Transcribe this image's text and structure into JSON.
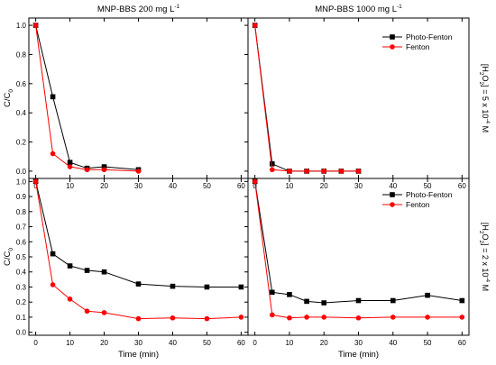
{
  "chart_data": [
    {
      "type": "line",
      "column_title": "MNP-BBS  200 mg L",
      "column_title_sup": "-1",
      "x_ticks": [
        0,
        10,
        20,
        30,
        40,
        50,
        60
      ],
      "y_ticks": [
        "0.0",
        "0.2",
        "0.4",
        "0.6",
        "0.8",
        "1.0"
      ],
      "ylabel": "C/C",
      "ylabel_sub": "0",
      "xlim": [
        -2,
        62
      ],
      "ylim": [
        -0.05,
        1.05
      ],
      "grid": false,
      "legend_position": "",
      "series": [
        {
          "name": "Photo-Fenton",
          "color": "#000000",
          "marker": "square",
          "x": [
            0,
            5,
            10,
            15,
            20,
            30
          ],
          "y": [
            1.0,
            0.51,
            0.06,
            0.02,
            0.03,
            0.01
          ]
        },
        {
          "name": "Fenton",
          "color": "#ff0000",
          "marker": "circle",
          "x": [
            0,
            5,
            10,
            15,
            20,
            30
          ],
          "y": [
            1.0,
            0.12,
            0.03,
            0.01,
            0.01,
            0.0
          ]
        }
      ]
    },
    {
      "type": "line",
      "column_title": "MNP-BBS  1000 mg L",
      "column_title_sup": "-1",
      "x_ticks": [
        0,
        10,
        20,
        30,
        40,
        50,
        60
      ],
      "y_ticks": [],
      "xlim": [
        -2,
        62
      ],
      "ylim": [
        -0.05,
        1.05
      ],
      "grid": false,
      "legend_position": "top-right",
      "row_label": {
        "pre": "[H",
        "s1": "2",
        "mid": "O",
        "s2": "2",
        "post": "] = 5 x 10",
        "exp": "-4",
        "unit": " M"
      },
      "series": [
        {
          "name": "Photo-Fenton",
          "color": "#000000",
          "marker": "square",
          "x": [
            0,
            5,
            10,
            15,
            20,
            25,
            30
          ],
          "y": [
            1.0,
            0.05,
            0.0,
            0.0,
            0.0,
            0.0,
            0.0
          ]
        },
        {
          "name": "Fenton",
          "color": "#ff0000",
          "marker": "circle",
          "x": [
            0,
            5,
            10,
            15,
            20,
            25,
            30
          ],
          "y": [
            1.0,
            0.01,
            0.0,
            0.0,
            0.0,
            0.0,
            0.0
          ]
        }
      ]
    },
    {
      "type": "line",
      "x_ticks": [
        0,
        10,
        20,
        30,
        40,
        50,
        60
      ],
      "y_ticks": [
        "0.0",
        "0.1",
        "0.2",
        "0.3",
        "0.4",
        "0.5",
        "0.6",
        "0.7",
        "0.8",
        "0.9",
        "1.0"
      ],
      "xlabel": "Time (min)",
      "ylabel": "C/C",
      "ylabel_sub": "0",
      "xlim": [
        -2,
        62
      ],
      "ylim": [
        -0.02,
        1.02
      ],
      "grid": false,
      "legend_position": "",
      "series": [
        {
          "name": "Photo-Fenton",
          "color": "#000000",
          "marker": "square",
          "x": [
            0,
            5,
            10,
            15,
            20,
            30,
            40,
            50,
            60
          ],
          "y": [
            1.0,
            0.52,
            0.44,
            0.41,
            0.4,
            0.32,
            0.305,
            0.3,
            0.3
          ]
        },
        {
          "name": "Fenton",
          "color": "#ff0000",
          "marker": "circle",
          "x": [
            0,
            5,
            10,
            15,
            20,
            30,
            40,
            50,
            60
          ],
          "y": [
            1.0,
            0.315,
            0.22,
            0.14,
            0.13,
            0.09,
            0.095,
            0.09,
            0.1
          ]
        }
      ]
    },
    {
      "type": "line",
      "x_ticks": [
        0,
        10,
        20,
        30,
        40,
        50,
        60
      ],
      "y_ticks": [],
      "xlabel": "Time (min)",
      "xlim": [
        -2,
        62
      ],
      "ylim": [
        -0.02,
        1.02
      ],
      "grid": false,
      "legend_position": "top-right",
      "row_label": {
        "pre": "[H",
        "s1": "2",
        "mid": "O",
        "s2": "2",
        "post": "] = 2 x 10",
        "exp": "-4",
        "unit": " M"
      },
      "series": [
        {
          "name": "Photo-Fenton",
          "color": "#000000",
          "marker": "square",
          "x": [
            0,
            5,
            10,
            15,
            20,
            30,
            40,
            50,
            60
          ],
          "y": [
            1.0,
            0.265,
            0.25,
            0.205,
            0.195,
            0.21,
            0.21,
            0.245,
            0.21
          ]
        },
        {
          "name": "Fenton",
          "color": "#ff0000",
          "marker": "circle",
          "x": [
            0,
            5,
            10,
            15,
            20,
            30,
            40,
            50,
            60
          ],
          "y": [
            1.0,
            0.115,
            0.095,
            0.1,
            0.1,
            0.095,
            0.1,
            0.1,
            0.1
          ]
        }
      ]
    }
  ]
}
